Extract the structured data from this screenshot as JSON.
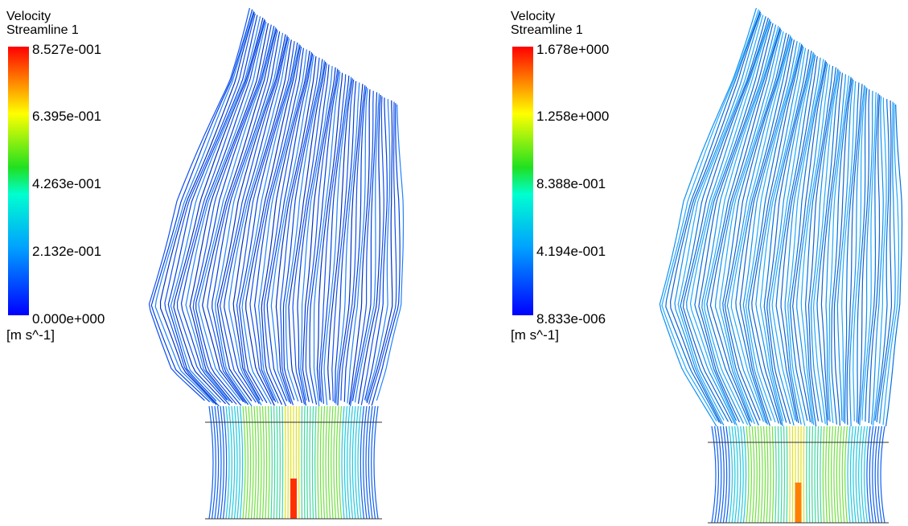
{
  "panels": [
    {
      "title": "Velocity",
      "subtitle": "Streamline 1",
      "legend_labels": [
        "8.527e-001",
        "6.395e-001",
        "4.263e-001",
        "2.132e-001",
        "0.000e+000"
      ],
      "unit": "[m s^-1]"
    },
    {
      "title": "Velocity",
      "subtitle": "Streamline 1",
      "legend_labels": [
        "1.678e+000",
        "1.258e+000",
        "8.388e-001",
        "4.194e-001",
        "8.833e-006"
      ],
      "unit": "[m s^-1]"
    }
  ]
}
